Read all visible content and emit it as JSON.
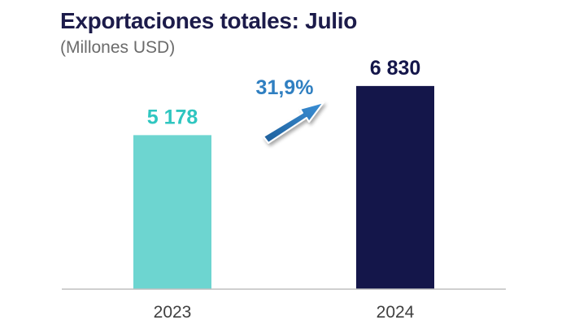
{
  "chart_data": {
    "type": "bar",
    "title": "Exportaciones totales: Julio",
    "subtitle": "(Millones USD)",
    "categories": [
      "2023",
      "2024"
    ],
    "values": [
      5178,
      6830
    ],
    "data_labels": [
      "5 178",
      "6 830"
    ],
    "bar_colors": [
      "#6dd5d0",
      "#14164a"
    ],
    "label_colors": [
      "#2fc6c0",
      "#14164a"
    ],
    "ylim": [
      0,
      7100
    ],
    "grid": false,
    "legend": "none",
    "annotation": {
      "text": "31,9%",
      "color": "#2f7fc1",
      "icon": "arrow-up-right-icon"
    }
  }
}
